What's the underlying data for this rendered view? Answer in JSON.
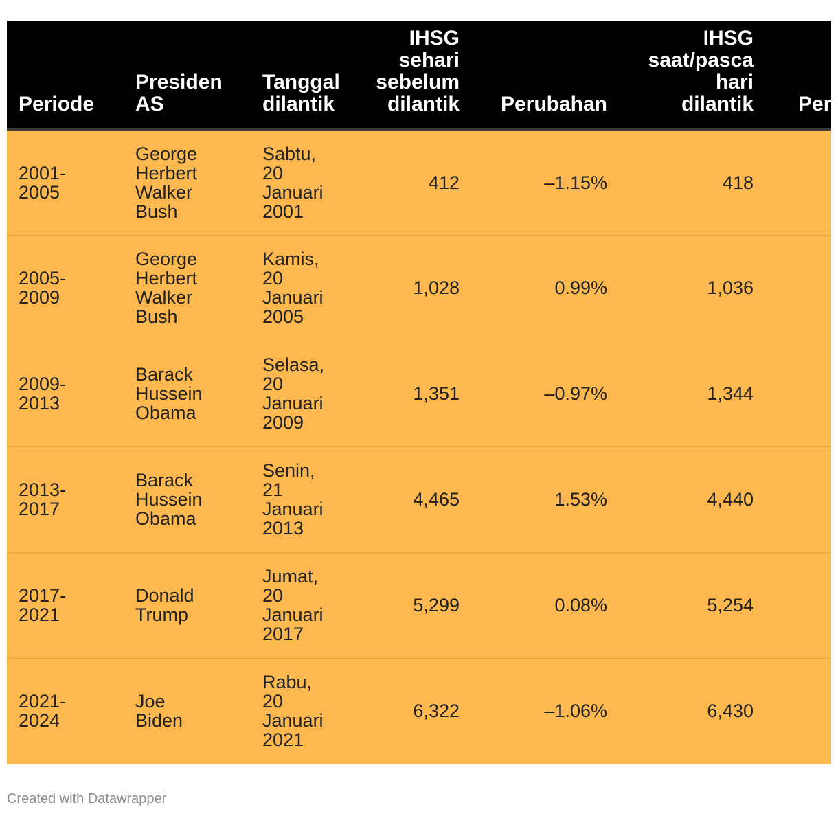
{
  "table": {
    "headers": {
      "periode": "Periode",
      "presiden": "Presiden AS",
      "tanggal": "Tanggal dilantik",
      "sebelum": "IHSG sehari sebelum dilantik",
      "perubahan": "Perubahan",
      "saat": "IHSG saat/pasca hari dilantik",
      "perubahan2": "Perubahan"
    },
    "rows": [
      {
        "periode": "2001-2005",
        "presiden": "George Herbert Walker Bush",
        "tanggal": "Sabtu, 20 Januari 2001",
        "sebelum": "412",
        "perubahan": "–1.15%",
        "saat": "418"
      },
      {
        "periode": "2005-2009",
        "presiden": "George Herbert Walker Bush",
        "tanggal": "Kamis, 20 Januari 2005",
        "sebelum": "1,028",
        "perubahan": "0.99%",
        "saat": "1,036"
      },
      {
        "periode": "2009-2013",
        "presiden": "Barack Hussein Obama",
        "tanggal": "Selasa, 20 Januari 2009",
        "sebelum": "1,351",
        "perubahan": "–0.97%",
        "saat": "1,344"
      },
      {
        "periode": "2013-2017",
        "presiden": "Barack Hussein Obama",
        "tanggal": "Senin, 21 Januari 2013",
        "sebelum": "4,465",
        "perubahan": "1.53%",
        "saat": "4,440"
      },
      {
        "periode": "2017-2021",
        "presiden": "Donald Trump",
        "tanggal": "Jumat, 20 Januari 2017",
        "sebelum": "5,299",
        "perubahan": "0.08%",
        "saat": "5,254"
      },
      {
        "periode": "2021-2024",
        "presiden": "Joe Biden",
        "tanggal": "Rabu, 20 Januari 2021",
        "sebelum": "6,322",
        "perubahan": "–1.06%",
        "saat": "6,430"
      }
    ]
  },
  "footer": {
    "credit": "Created with Datawrapper"
  },
  "colors": {
    "header_bg": "#000000",
    "row_bg": "#fdb950",
    "footer_text": "#8a8a8a"
  }
}
